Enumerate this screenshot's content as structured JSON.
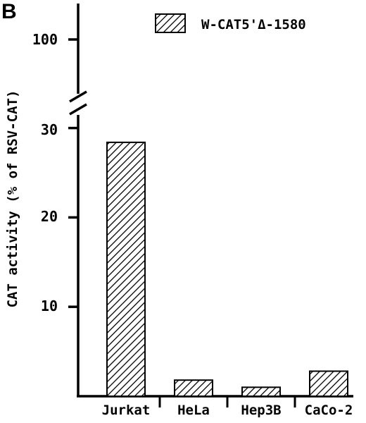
{
  "panel_label": "B",
  "chart_data": {
    "type": "bar",
    "title": "",
    "ylabel": "CAT activity (% of RSV-CAT)",
    "xlabel": "",
    "categories": [
      "Jurkat",
      "HeLa",
      "Hep3B",
      "CaCo-2"
    ],
    "series": [
      {
        "name": "W-CAT5'Δ-1580",
        "values": [
          28.4,
          1.8,
          1.0,
          2.8
        ]
      }
    ],
    "y_ticks": [
      "10",
      "20",
      "30",
      "100"
    ],
    "ylim": [
      0,
      30
    ],
    "axis_break": {
      "below": 30,
      "resume_label": "100"
    },
    "legend_position": "top-right",
    "bar_fill": "diagonal-hatch",
    "colors": {
      "ink": "#000000",
      "background": "#ffffff"
    }
  }
}
